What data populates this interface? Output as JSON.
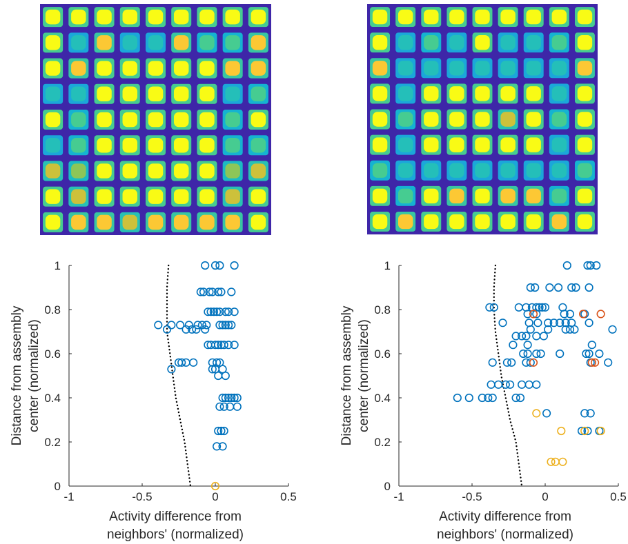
{
  "colors": {
    "blue": "#0072bd",
    "red": "#d95319",
    "yellow": "#edb120",
    "heat_low": "#3e26a8",
    "heat_high": "#f9fb15",
    "axis": "#262626"
  },
  "heatmaps": [
    {
      "type": "heatmap",
      "grid": [
        9,
        9
      ],
      "colormap": "parula",
      "peak_levels": [
        [
          1,
          1,
          1,
          1,
          1,
          1,
          1,
          1,
          1
        ],
        [
          1,
          0.5,
          0.9,
          0.5,
          0.5,
          0.9,
          0.6,
          0.6,
          0.9
        ],
        [
          1,
          0.9,
          1,
          1,
          1,
          1,
          1,
          0.9,
          0.9
        ],
        [
          0.5,
          0.5,
          1,
          1,
          1,
          1,
          1,
          0.5,
          0.6
        ],
        [
          1,
          0.6,
          1,
          1,
          1,
          1,
          1,
          0.6,
          1
        ],
        [
          0.5,
          0.6,
          1,
          1,
          1,
          1,
          1,
          0.6,
          0.6
        ],
        [
          0.8,
          0.7,
          1,
          1,
          1,
          1,
          1,
          0.7,
          0.8
        ],
        [
          1,
          0.8,
          1,
          1,
          1,
          1,
          1,
          0.8,
          1
        ],
        [
          1,
          0.9,
          0.9,
          0.8,
          0.9,
          0.9,
          0.9,
          0.9,
          1
        ]
      ]
    },
    {
      "type": "heatmap",
      "grid": [
        9,
        9
      ],
      "colormap": "parula",
      "peak_levels": [
        [
          1,
          1,
          1,
          1,
          1,
          1,
          1,
          1,
          1
        ],
        [
          1,
          0.5,
          0.6,
          0.5,
          1,
          0.5,
          0.5,
          0.6,
          1
        ],
        [
          0.9,
          0.5,
          0.5,
          0.5,
          0.5,
          0.5,
          0.5,
          0.5,
          0.9
        ],
        [
          1,
          0.5,
          1,
          1,
          1,
          1,
          1,
          0.5,
          1
        ],
        [
          1,
          0.6,
          1,
          1,
          1,
          0.8,
          1,
          0.6,
          1
        ],
        [
          1,
          0.5,
          1,
          1,
          1,
          1,
          1,
          0.5,
          1
        ],
        [
          0.6,
          0.5,
          0.5,
          0.5,
          0.5,
          0.5,
          0.5,
          0.5,
          0.6
        ],
        [
          1,
          0.6,
          1,
          0.9,
          1,
          0.9,
          0.9,
          0.6,
          1
        ],
        [
          1,
          0.9,
          1,
          1,
          1,
          1,
          1,
          0.9,
          1
        ]
      ]
    }
  ],
  "chart_data": [
    {
      "type": "scatter",
      "xlabel": [
        "Activity difference from",
        "neighbors' (normalized)"
      ],
      "ylabel": [
        "Distance from assembly",
        "center (normalized)"
      ],
      "xlim": [
        -1,
        0.5
      ],
      "ylim": [
        0,
        1
      ],
      "xticks": [
        -1,
        -0.5,
        0,
        0.5
      ],
      "xtick_labels": [
        "-1",
        "-0.5",
        "0",
        "0.5"
      ],
      "yticks": [
        0,
        0.2,
        0.4,
        0.6,
        0.8,
        1
      ],
      "ytick_labels": [
        "0",
        "0.2",
        "0.4",
        "0.6",
        "0.8",
        "1"
      ],
      "grid": false,
      "threshold_curve": [
        [
          -0.32,
          1.0
        ],
        [
          -0.33,
          0.9
        ],
        [
          -0.33,
          0.8
        ],
        [
          -0.33,
          0.7
        ],
        [
          -0.31,
          0.6
        ],
        [
          -0.29,
          0.5
        ],
        [
          -0.27,
          0.4
        ],
        [
          -0.24,
          0.3
        ],
        [
          -0.21,
          0.2
        ],
        [
          -0.19,
          0.1
        ],
        [
          -0.17,
          0.0
        ]
      ],
      "series": [
        {
          "color": "blue",
          "points": [
            [
              -0.07,
              1.0
            ],
            [
              0.0,
              1.0
            ],
            [
              0.03,
              1.0
            ],
            [
              0.13,
              1.0
            ],
            [
              -0.1,
              0.88
            ],
            [
              -0.08,
              0.88
            ],
            [
              -0.04,
              0.88
            ],
            [
              -0.02,
              0.88
            ],
            [
              0.02,
              0.88
            ],
            [
              0.04,
              0.88
            ],
            [
              0.11,
              0.88
            ],
            [
              -0.05,
              0.79
            ],
            [
              -0.03,
              0.79
            ],
            [
              -0.01,
              0.79
            ],
            [
              0.01,
              0.79
            ],
            [
              0.03,
              0.79
            ],
            [
              0.07,
              0.79
            ],
            [
              0.09,
              0.79
            ],
            [
              0.13,
              0.79
            ],
            [
              -0.39,
              0.73
            ],
            [
              -0.3,
              0.73
            ],
            [
              -0.24,
              0.73
            ],
            [
              -0.18,
              0.73
            ],
            [
              -0.12,
              0.73
            ],
            [
              -0.09,
              0.73
            ],
            [
              -0.06,
              0.73
            ],
            [
              0.03,
              0.73
            ],
            [
              0.05,
              0.73
            ],
            [
              0.07,
              0.73
            ],
            [
              0.09,
              0.73
            ],
            [
              0.11,
              0.73
            ],
            [
              -0.33,
              0.71
            ],
            [
              -0.2,
              0.71
            ],
            [
              -0.16,
              0.71
            ],
            [
              -0.13,
              0.71
            ],
            [
              -0.07,
              0.71
            ],
            [
              -0.05,
              0.64
            ],
            [
              -0.03,
              0.64
            ],
            [
              0.0,
              0.64
            ],
            [
              0.02,
              0.64
            ],
            [
              0.04,
              0.64
            ],
            [
              0.06,
              0.64
            ],
            [
              0.09,
              0.64
            ],
            [
              0.13,
              0.64
            ],
            [
              -0.25,
              0.56
            ],
            [
              -0.23,
              0.56
            ],
            [
              -0.2,
              0.56
            ],
            [
              -0.15,
              0.56
            ],
            [
              -0.02,
              0.56
            ],
            [
              0.01,
              0.56
            ],
            [
              0.03,
              0.56
            ],
            [
              -0.3,
              0.53
            ],
            [
              -0.02,
              0.53
            ],
            [
              0.0,
              0.53
            ],
            [
              0.05,
              0.53
            ],
            [
              0.02,
              0.5
            ],
            [
              0.07,
              0.5
            ],
            [
              0.05,
              0.4
            ],
            [
              0.07,
              0.4
            ],
            [
              0.09,
              0.4
            ],
            [
              0.11,
              0.4
            ],
            [
              0.13,
              0.4
            ],
            [
              0.15,
              0.4
            ],
            [
              0.03,
              0.36
            ],
            [
              0.06,
              0.36
            ],
            [
              0.1,
              0.36
            ],
            [
              0.15,
              0.36
            ],
            [
              0.02,
              0.25
            ],
            [
              0.04,
              0.25
            ],
            [
              0.06,
              0.25
            ],
            [
              0.01,
              0.18
            ],
            [
              0.05,
              0.18
            ]
          ]
        },
        {
          "color": "yellow",
          "points": [
            [
              0.0,
              0.0
            ]
          ]
        }
      ]
    },
    {
      "type": "scatter",
      "xlabel": [
        "Activity difference from",
        "neighbors' (normalized)"
      ],
      "ylabel": [
        "Distance from assembly",
        "center (normalized)"
      ],
      "xlim": [
        -1,
        0.5
      ],
      "ylim": [
        0,
        1
      ],
      "xticks": [
        -1,
        -0.5,
        0,
        0.5
      ],
      "xtick_labels": [
        "-1",
        "-0.5",
        "0",
        "0.5"
      ],
      "yticks": [
        0,
        0.2,
        0.4,
        0.6,
        0.8,
        1
      ],
      "ytick_labels": [
        "0",
        "0.2",
        "0.4",
        "0.6",
        "0.8",
        "1"
      ],
      "grid": false,
      "threshold_curve": [
        [
          -0.34,
          1.0
        ],
        [
          -0.35,
          0.9
        ],
        [
          -0.35,
          0.8
        ],
        [
          -0.34,
          0.7
        ],
        [
          -0.32,
          0.6
        ],
        [
          -0.3,
          0.5
        ],
        [
          -0.27,
          0.4
        ],
        [
          -0.24,
          0.3
        ],
        [
          -0.2,
          0.2
        ],
        [
          -0.18,
          0.1
        ],
        [
          -0.16,
          0.0
        ]
      ],
      "series": [
        {
          "color": "blue",
          "points": [
            [
              0.15,
              1.0
            ],
            [
              0.29,
              1.0
            ],
            [
              0.31,
              1.0
            ],
            [
              0.35,
              1.0
            ],
            [
              -0.1,
              0.9
            ],
            [
              -0.07,
              0.9
            ],
            [
              0.03,
              0.9
            ],
            [
              0.09,
              0.9
            ],
            [
              0.18,
              0.9
            ],
            [
              0.21,
              0.9
            ],
            [
              0.3,
              0.9
            ],
            [
              -0.38,
              0.81
            ],
            [
              -0.35,
              0.81
            ],
            [
              -0.18,
              0.81
            ],
            [
              -0.13,
              0.81
            ],
            [
              -0.09,
              0.81
            ],
            [
              -0.06,
              0.81
            ],
            [
              -0.04,
              0.81
            ],
            [
              -0.02,
              0.81
            ],
            [
              0.0,
              0.81
            ],
            [
              0.12,
              0.81
            ],
            [
              -0.12,
              0.78
            ],
            [
              -0.06,
              0.78
            ],
            [
              0.13,
              0.78
            ],
            [
              0.17,
              0.78
            ],
            [
              0.27,
              0.78
            ],
            [
              -0.29,
              0.74
            ],
            [
              -0.11,
              0.74
            ],
            [
              -0.05,
              0.74
            ],
            [
              0.02,
              0.74
            ],
            [
              0.06,
              0.74
            ],
            [
              0.1,
              0.74
            ],
            [
              0.14,
              0.74
            ],
            [
              0.18,
              0.74
            ],
            [
              0.3,
              0.74
            ],
            [
              -0.1,
              0.71
            ],
            [
              0.02,
              0.71
            ],
            [
              0.14,
              0.71
            ],
            [
              0.17,
              0.71
            ],
            [
              0.2,
              0.71
            ],
            [
              0.46,
              0.71
            ],
            [
              -0.2,
              0.68
            ],
            [
              -0.16,
              0.68
            ],
            [
              -0.13,
              0.68
            ],
            [
              -0.06,
              0.68
            ],
            [
              -0.01,
              0.68
            ],
            [
              -0.22,
              0.64
            ],
            [
              -0.12,
              0.64
            ],
            [
              0.32,
              0.64
            ],
            [
              -0.15,
              0.6
            ],
            [
              -0.12,
              0.6
            ],
            [
              -0.06,
              0.6
            ],
            [
              -0.03,
              0.6
            ],
            [
              0.1,
              0.6
            ],
            [
              0.28,
              0.6
            ],
            [
              0.3,
              0.6
            ],
            [
              0.37,
              0.6
            ],
            [
              -0.36,
              0.56
            ],
            [
              -0.26,
              0.56
            ],
            [
              -0.23,
              0.56
            ],
            [
              -0.13,
              0.56
            ],
            [
              -0.1,
              0.56
            ],
            [
              0.31,
              0.56
            ],
            [
              0.43,
              0.56
            ],
            [
              -0.37,
              0.46
            ],
            [
              -0.32,
              0.46
            ],
            [
              -0.27,
              0.46
            ],
            [
              -0.24,
              0.46
            ],
            [
              -0.16,
              0.46
            ],
            [
              -0.11,
              0.46
            ],
            [
              -0.06,
              0.46
            ],
            [
              -0.6,
              0.4
            ],
            [
              -0.52,
              0.4
            ],
            [
              -0.43,
              0.4
            ],
            [
              -0.39,
              0.4
            ],
            [
              -0.36,
              0.4
            ],
            [
              -0.2,
              0.4
            ],
            [
              -0.17,
              0.4
            ],
            [
              0.01,
              0.33
            ],
            [
              0.27,
              0.33
            ],
            [
              0.31,
              0.33
            ],
            [
              0.25,
              0.25
            ],
            [
              0.29,
              0.25
            ],
            [
              0.37,
              0.25
            ]
          ]
        },
        {
          "color": "red",
          "points": [
            [
              -0.08,
              0.78
            ],
            [
              0.26,
              0.78
            ],
            [
              0.38,
              0.78
            ],
            [
              -0.08,
              0.56
            ],
            [
              0.32,
              0.56
            ],
            [
              0.34,
              0.56
            ]
          ]
        },
        {
          "color": "yellow",
          "points": [
            [
              -0.06,
              0.33
            ],
            [
              0.11,
              0.25
            ],
            [
              0.27,
              0.25
            ],
            [
              0.38,
              0.25
            ],
            [
              0.04,
              0.11
            ],
            [
              0.07,
              0.11
            ],
            [
              0.12,
              0.11
            ]
          ]
        }
      ]
    }
  ]
}
